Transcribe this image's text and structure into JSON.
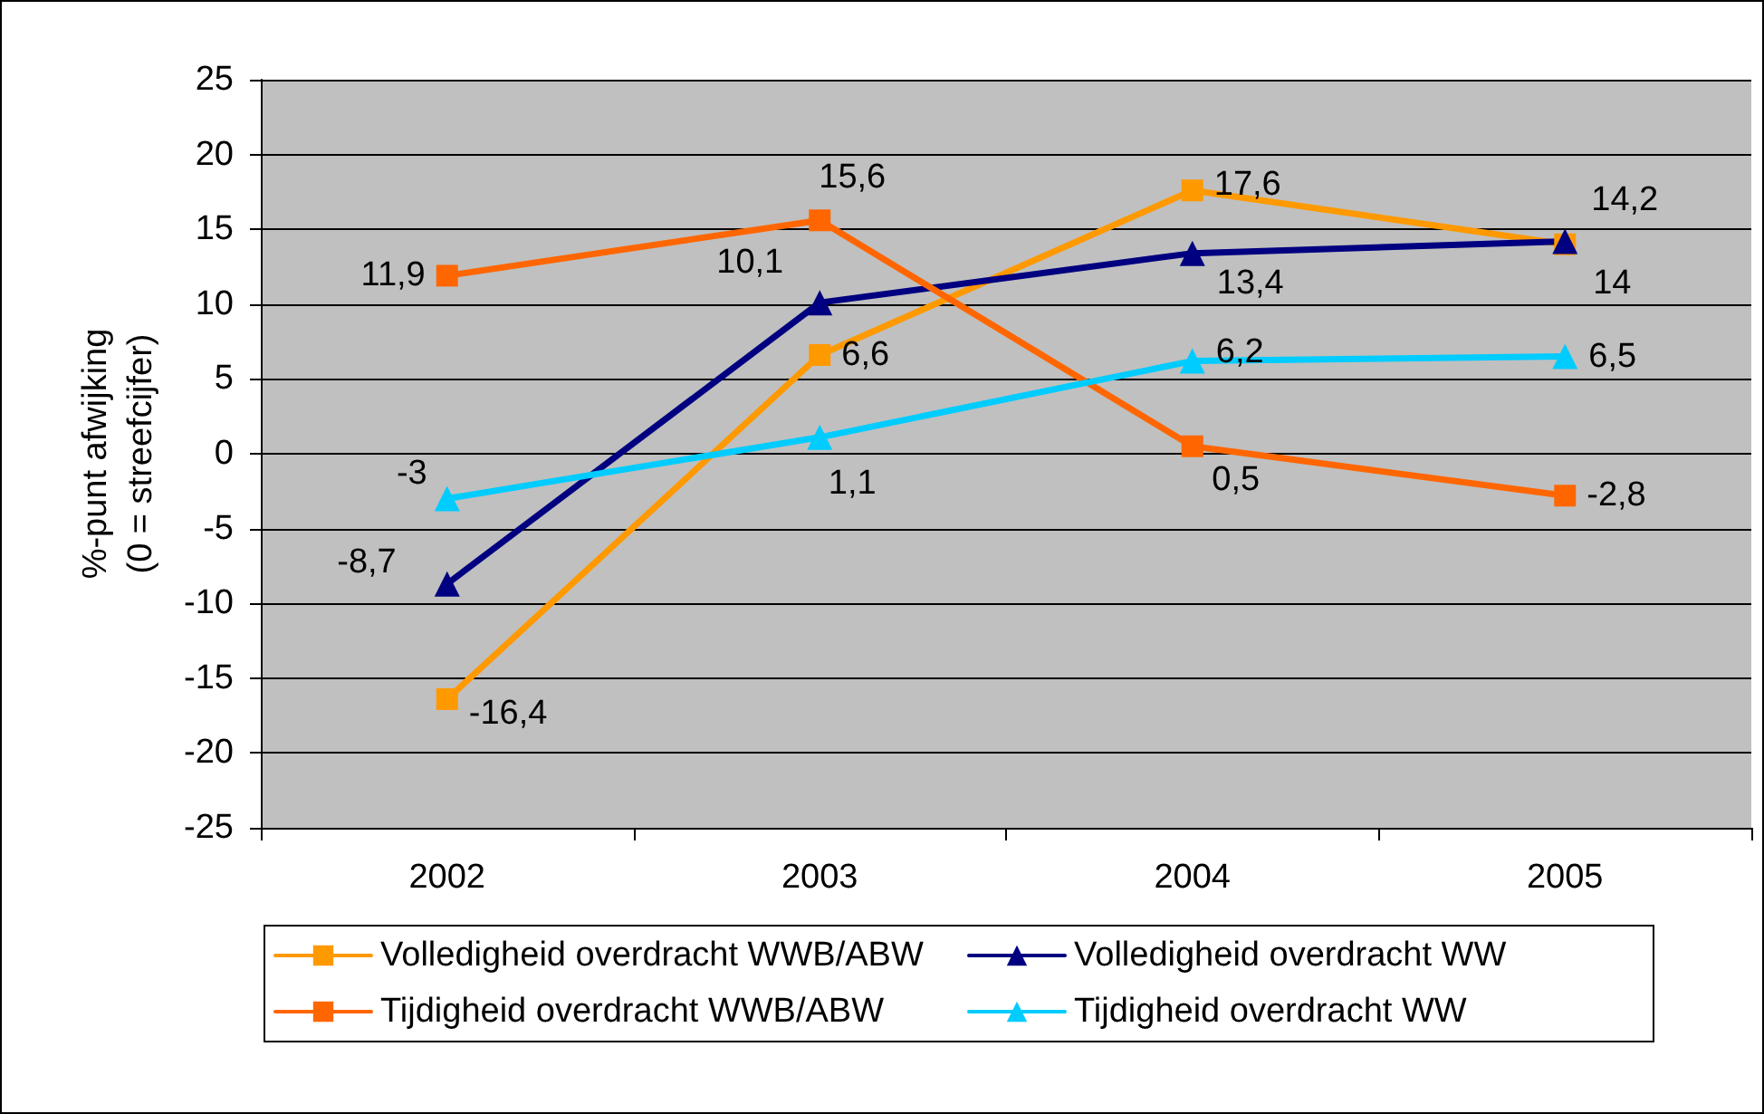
{
  "chart_data": {
    "type": "line",
    "ylabel": "%-punt afwijking\n(0 = streefcijfer)",
    "categories": [
      "2002",
      "2003",
      "2004",
      "2005"
    ],
    "series": [
      {
        "name": "Volledigheid overdracht WWB/ABW",
        "color": "#ff9900",
        "marker": "square",
        "values": [
          -16.4,
          6.6,
          17.6,
          14
        ],
        "value_labels": [
          "-16,4",
          "6,6",
          "17,6",
          "14"
        ]
      },
      {
        "name": "Volledigheid overdracht WW",
        "color": "#000080",
        "marker": "triangle",
        "values": [
          -8.7,
          10.1,
          13.4,
          14.2
        ],
        "value_labels": [
          "-8,7",
          "10,1",
          "13,4",
          "14,2"
        ]
      },
      {
        "name": "Tijdigheid overdracht WWB/ABW",
        "color": "#ff6600",
        "marker": "square",
        "values": [
          11.9,
          15.6,
          0.5,
          -2.8
        ],
        "value_labels": [
          "11,9",
          "15,6",
          "0,5",
          "-2,8"
        ]
      },
      {
        "name": "Tijdigheid overdracht WW",
        "color": "#00ccff",
        "marker": "triangle",
        "values": [
          -3,
          1.1,
          6.2,
          6.5
        ],
        "value_labels": [
          "-3",
          "1,1",
          "6,2",
          "6,5"
        ]
      }
    ],
    "ylim": [
      -25,
      25
    ],
    "yticks": [
      -25,
      -20,
      -15,
      -10,
      -5,
      0,
      5,
      10,
      15,
      20,
      25
    ],
    "grid": "y",
    "legend": "bottom",
    "line_style": "solid"
  }
}
